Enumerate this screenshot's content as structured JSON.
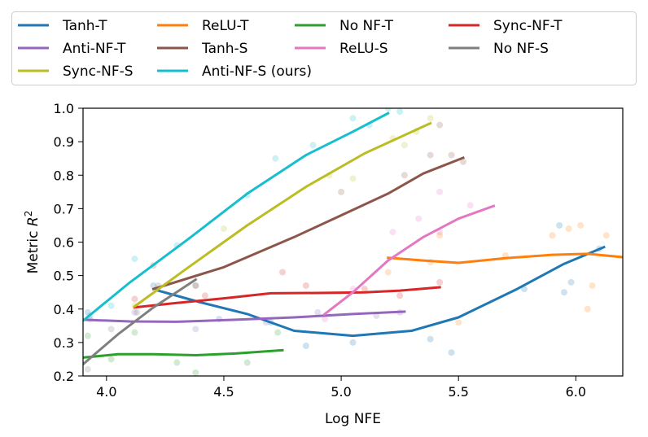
{
  "chart_data": {
    "type": "line",
    "title": "",
    "xlabel": "Log NFE",
    "ylabel": "Metric",
    "ylabel_sup": "2",
    "ylabel_var": "R",
    "xlim": [
      3.9,
      6.2
    ],
    "ylim": [
      0.2,
      1.0
    ],
    "xticks": [
      4.0,
      4.5,
      5.0,
      5.5,
      6.0
    ],
    "xtick_labels": [
      "4.0",
      "4.5",
      "5.0",
      "5.5",
      "6.0"
    ],
    "yticks": [
      0.2,
      0.3,
      0.4,
      0.5,
      0.6,
      0.7,
      0.8,
      0.9,
      1.0
    ],
    "ytick_labels": [
      "0.2",
      "0.3",
      "0.4",
      "0.5",
      "0.6",
      "0.7",
      "0.8",
      "0.9",
      "1.0"
    ],
    "legend_position": "top-outside",
    "series": [
      {
        "name": "Tanh-T",
        "color": "#1f77b4",
        "x": [
          4.22,
          4.4,
          4.6,
          4.8,
          5.05,
          5.3,
          5.5,
          5.75,
          5.95,
          6.12
        ],
        "y": [
          0.455,
          0.42,
          0.385,
          0.335,
          0.32,
          0.335,
          0.375,
          0.46,
          0.535,
          0.585
        ],
        "points": [
          [
            3.92,
            0.39
          ],
          [
            4.2,
            0.47
          ],
          [
            4.48,
            0.37
          ],
          [
            4.7,
            0.36
          ],
          [
            4.85,
            0.29
          ],
          [
            5.05,
            0.3
          ],
          [
            5.38,
            0.31
          ],
          [
            5.47,
            0.27
          ],
          [
            5.78,
            0.46
          ],
          [
            5.93,
            0.65
          ],
          [
            5.95,
            0.45
          ],
          [
            5.98,
            0.48
          ],
          [
            6.1,
            0.58
          ]
        ]
      },
      {
        "name": "ReLU-T",
        "color": "#ff7f0e",
        "x": [
          5.2,
          5.35,
          5.5,
          5.7,
          5.9,
          6.05,
          6.2
        ],
        "y": [
          0.553,
          0.545,
          0.538,
          0.552,
          0.562,
          0.565,
          0.555
        ],
        "points": [
          [
            5.2,
            0.51
          ],
          [
            5.38,
            0.54
          ],
          [
            5.42,
            0.62
          ],
          [
            5.5,
            0.36
          ],
          [
            5.7,
            0.56
          ],
          [
            5.9,
            0.62
          ],
          [
            5.97,
            0.64
          ],
          [
            6.02,
            0.65
          ],
          [
            6.05,
            0.4
          ],
          [
            6.07,
            0.47
          ],
          [
            6.13,
            0.62
          ]
        ]
      },
      {
        "name": "No NF-T",
        "color": "#2ca02c",
        "x": [
          3.9,
          4.05,
          4.2,
          4.38,
          4.55,
          4.75
        ],
        "y": [
          0.255,
          0.265,
          0.265,
          0.262,
          0.267,
          0.277
        ],
        "points": [
          [
            3.92,
            0.32
          ],
          [
            4.02,
            0.25
          ],
          [
            4.12,
            0.33
          ],
          [
            4.3,
            0.24
          ],
          [
            4.38,
            0.21
          ],
          [
            4.6,
            0.24
          ],
          [
            4.73,
            0.33
          ]
        ]
      },
      {
        "name": "Sync-NF-T",
        "color": "#d62728",
        "x": [
          4.12,
          4.3,
          4.5,
          4.7,
          4.9,
          5.1,
          5.25,
          5.42
        ],
        "y": [
          0.405,
          0.418,
          0.432,
          0.447,
          0.448,
          0.45,
          0.455,
          0.465
        ],
        "points": [
          [
            4.12,
            0.43
          ],
          [
            4.42,
            0.44
          ],
          [
            4.75,
            0.51
          ],
          [
            4.85,
            0.47
          ],
          [
            5.1,
            0.46
          ],
          [
            5.25,
            0.44
          ],
          [
            5.42,
            0.48
          ]
        ]
      },
      {
        "name": "Anti-NF-T",
        "color": "#9467bd",
        "x": [
          3.9,
          4.1,
          4.3,
          4.55,
          4.8,
          5.05,
          5.27
        ],
        "y": [
          0.368,
          0.363,
          0.362,
          0.368,
          0.375,
          0.385,
          0.392
        ],
        "points": [
          [
            3.93,
            0.37
          ],
          [
            4.12,
            0.39
          ],
          [
            4.38,
            0.34
          ],
          [
            4.68,
            0.36
          ],
          [
            4.9,
            0.39
          ],
          [
            5.15,
            0.38
          ],
          [
            5.25,
            0.39
          ]
        ]
      },
      {
        "name": "Tanh-S",
        "color": "#8c564b",
        "x": [
          4.2,
          4.5,
          4.8,
          5.0,
          5.2,
          5.35,
          5.52
        ],
        "y": [
          0.46,
          0.525,
          0.615,
          0.68,
          0.745,
          0.805,
          0.852
        ],
        "points": [
          [
            4.2,
            0.53
          ],
          [
            4.38,
            0.47
          ],
          [
            5.0,
            0.75
          ],
          [
            5.27,
            0.8
          ],
          [
            5.38,
            0.86
          ],
          [
            5.47,
            0.86
          ],
          [
            5.52,
            0.84
          ],
          [
            5.42,
            0.95
          ]
        ]
      },
      {
        "name": "ReLU-S",
        "color": "#e377c2",
        "x": [
          4.93,
          5.05,
          5.2,
          5.35,
          5.5,
          5.65
        ],
        "y": [
          0.385,
          0.45,
          0.545,
          0.615,
          0.67,
          0.708
        ],
        "points": [
          [
            4.93,
            0.37
          ],
          [
            5.05,
            0.46
          ],
          [
            5.22,
            0.63
          ],
          [
            5.33,
            0.67
          ],
          [
            5.42,
            0.75
          ],
          [
            5.55,
            0.71
          ],
          [
            5.42,
            0.63
          ]
        ]
      },
      {
        "name": "No NF-S",
        "color": "#7f7f7f",
        "x": [
          3.9,
          4.05,
          4.2,
          4.38
        ],
        "y": [
          0.235,
          0.325,
          0.405,
          0.488
        ],
        "points": [
          [
            3.92,
            0.22
          ],
          [
            4.02,
            0.34
          ],
          [
            4.13,
            0.39
          ],
          [
            4.22,
            0.47
          ],
          [
            4.38,
            0.47
          ]
        ]
      },
      {
        "name": "Sync-NF-S",
        "color": "#bcbd22",
        "x": [
          4.12,
          4.35,
          4.6,
          4.85,
          5.1,
          5.38
        ],
        "y": [
          0.408,
          0.525,
          0.65,
          0.765,
          0.865,
          0.955
        ],
        "points": [
          [
            4.12,
            0.41
          ],
          [
            4.5,
            0.64
          ],
          [
            4.95,
            0.8
          ],
          [
            5.05,
            0.79
          ],
          [
            5.22,
            0.91
          ],
          [
            5.38,
            0.97
          ],
          [
            5.27,
            0.89
          ],
          [
            5.32,
            0.93
          ]
        ]
      },
      {
        "name": "Anti-NF-S (ours)",
        "color": "#17becf",
        "x": [
          3.9,
          4.1,
          4.35,
          4.6,
          4.85,
          5.05,
          5.2
        ],
        "y": [
          0.365,
          0.48,
          0.61,
          0.745,
          0.86,
          0.93,
          0.985
        ],
        "points": [
          [
            3.93,
            0.38
          ],
          [
            4.02,
            0.41
          ],
          [
            4.12,
            0.55
          ],
          [
            4.3,
            0.59
          ],
          [
            4.6,
            0.74
          ],
          [
            4.72,
            0.85
          ],
          [
            4.88,
            0.89
          ],
          [
            5.05,
            0.97
          ],
          [
            5.12,
            0.95
          ],
          [
            5.25,
            0.99
          ],
          [
            5.2,
            1.0
          ]
        ]
      }
    ]
  }
}
